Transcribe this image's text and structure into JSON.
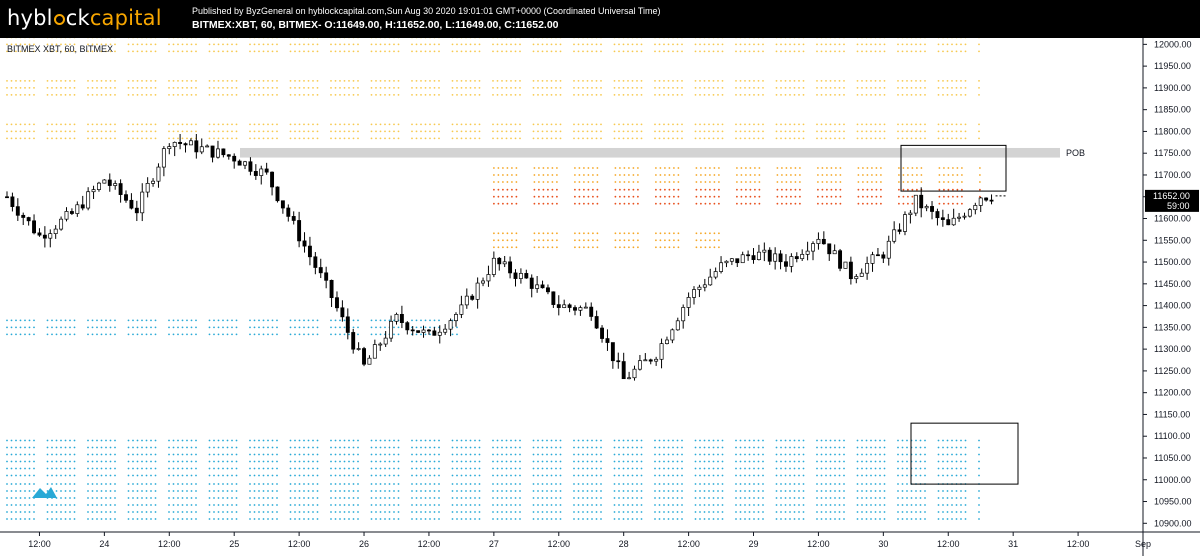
{
  "header": {
    "logo_prefix": "hybl",
    "logo_mid": "ck",
    "logo_suffix": "capital",
    "published_line": "Published by ByzGeneral on hyblockcapital.com,Sun Aug 30 2020 19:01:01 GMT+0000 (Coordinated Universal Time)",
    "ohlc_line": "BITMEX:XBT, 60, BITMEX- O:11649.00, H:11652.00, L:11649.00, C:11652.00"
  },
  "chart_title": "BITMEX XBT, 60, BITMEX",
  "colors": {
    "up_body": "#ffffff",
    "down_body": "#000000",
    "candle_outline": "#000000",
    "liq_high": "#f7c94f",
    "liq_mid": "#f5a623",
    "liq_hot": "#e8501d",
    "liq_green": "#4caf50",
    "liq_low": "#29a9d6",
    "price_tag": "#000000",
    "pob_band": "#d3d3d3",
    "logo_accent": "#f7a600"
  },
  "chart_data": {
    "type": "candlestick",
    "symbol": "BITMEX:XBT",
    "timeframe": "60",
    "x_axis_labels": [
      "12:00",
      "24",
      "12:00",
      "25",
      "12:00",
      "26",
      "12:00",
      "27",
      "12:00",
      "28",
      "12:00",
      "29",
      "12:00",
      "30",
      "12:00",
      "31",
      "12:00",
      "Sep"
    ],
    "y_ticks": [
      10900,
      10950,
      11000,
      11050,
      11100,
      11150,
      11200,
      11250,
      11300,
      11350,
      11400,
      11450,
      11500,
      11550,
      11600,
      11650,
      11700,
      11750,
      11800,
      11850,
      11900,
      11950,
      12000
    ],
    "ylim": [
      10880,
      12010
    ],
    "last_price": 11652,
    "last_price_label": "11652.00",
    "countdown": "59:00",
    "annotations": [
      {
        "label": "POB",
        "price_low": 11740,
        "price_high": 11762
      }
    ],
    "boxes": [
      {
        "price_low": 11663,
        "price_high": 11768,
        "time_start": "Aug 30 ~08:00",
        "time_end": "Aug 30 ~18:00"
      },
      {
        "price_low": 10990,
        "price_high": 11130,
        "time_start": "Aug 30 ~11:00",
        "time_end": "Aug 30 ~18:00"
      }
    ],
    "series": [
      {
        "name": "XBT",
        "x": [
          "Aug 23 06:00",
          "Aug 23 12:00",
          "Aug 23 18:00",
          "Aug 24 00:00",
          "Aug 24 06:00",
          "Aug 24 12:00",
          "Aug 24 18:00",
          "Aug 25 00:00",
          "Aug 25 06:00",
          "Aug 25 12:00",
          "Aug 25 18:00",
          "Aug 26 00:00",
          "Aug 26 06:00",
          "Aug 26 12:00",
          "Aug 26 18:00",
          "Aug 27 00:00",
          "Aug 27 06:00",
          "Aug 27 12:00",
          "Aug 27 18:00",
          "Aug 28 00:00",
          "Aug 28 06:00",
          "Aug 28 12:00",
          "Aug 28 18:00",
          "Aug 29 00:00",
          "Aug 29 06:00",
          "Aug 29 12:00",
          "Aug 29 18:00",
          "Aug 30 00:00",
          "Aug 30 06:00",
          "Aug 30 12:00",
          "Aug 30 18:00"
        ],
        "values": [
          11650,
          11560,
          11610,
          11690,
          11620,
          11780,
          11760,
          11740,
          11700,
          11560,
          11420,
          11260,
          11370,
          11330,
          11390,
          11500,
          11460,
          11400,
          11390,
          11230,
          11290,
          11420,
          11490,
          11520,
          11500,
          11560,
          11470,
          11520,
          11640,
          11580,
          11652
        ]
      }
    ],
    "liquidity_levels": [
      {
        "price": 12000,
        "tier": "high",
        "span": "Aug 23–Aug 30"
      },
      {
        "price": 11900,
        "tier": "high",
        "span": "Aug 23–Aug 30"
      },
      {
        "price": 11800,
        "tier": "high",
        "span": "Aug 23–Aug 30"
      },
      {
        "price": 11700,
        "tier": "mid",
        "span": "Aug 27–Aug 30"
      },
      {
        "price": 11650,
        "tier": "hot",
        "span": "Aug 27–Aug 30"
      },
      {
        "price": 11550,
        "tier": "mid",
        "span": "Aug 27–Aug 28"
      },
      {
        "price": 11350,
        "tier": "low",
        "span": "Aug 23–Aug 26"
      },
      {
        "price": 11050,
        "tier": "low",
        "span": "Aug 23–Aug 30"
      },
      {
        "price": 10950,
        "tier": "low",
        "span": "Aug 23–Aug 30"
      }
    ]
  }
}
